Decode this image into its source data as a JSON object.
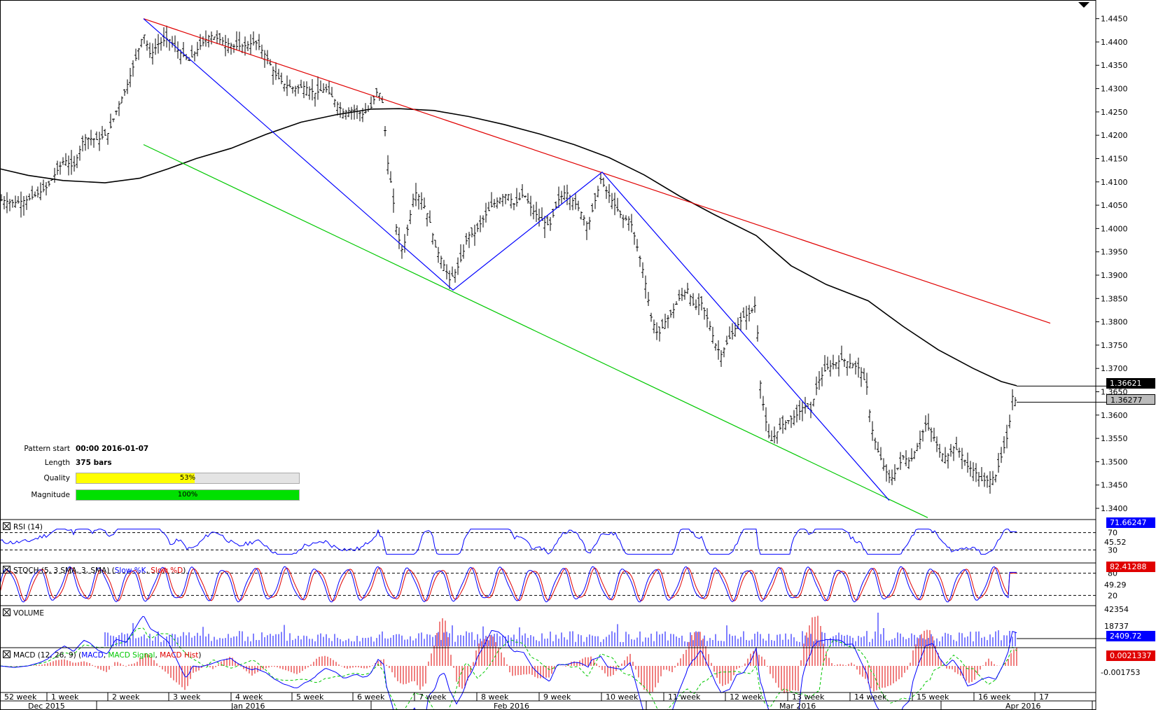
{
  "chart_data": {
    "type": "ohlc",
    "price_axis": {
      "ticks": [
        "1.4450",
        "1.4400",
        "1.4350",
        "1.4300",
        "1.4250",
        "1.4200",
        "1.4150",
        "1.4100",
        "1.4050",
        "1.4000",
        "1.3950",
        "1.3900",
        "1.3850",
        "1.3800",
        "1.3750",
        "1.3700",
        "1.3650",
        "1.3600",
        "1.3550",
        "1.3500",
        "1.3450",
        "1.3400"
      ],
      "range": [
        1.3385,
        1.449
      ]
    },
    "price_tags": [
      {
        "label": "1.36621",
        "value": 1.36621,
        "style": "dark"
      },
      {
        "label": "1.36277",
        "value": 1.36277,
        "style": "grey"
      }
    ],
    "close_path": [
      [
        0,
        1.4062
      ],
      [
        20,
        1.4055
      ],
      [
        40,
        1.4062
      ],
      [
        55,
        1.4075
      ],
      [
        68,
        1.409
      ],
      [
        80,
        1.412
      ],
      [
        92,
        1.4148
      ],
      [
        105,
        1.413
      ],
      [
        120,
        1.4195
      ],
      [
        140,
        1.419
      ],
      [
        155,
        1.4205
      ],
      [
        168,
        1.426
      ],
      [
        180,
        1.43
      ],
      [
        193,
        1.436
      ],
      [
        205,
        1.442
      ],
      [
        215,
        1.437
      ],
      [
        225,
        1.4395
      ],
      [
        240,
        1.4408
      ],
      [
        255,
        1.438
      ],
      [
        270,
        1.436
      ],
      [
        285,
        1.439
      ],
      [
        300,
        1.4415
      ],
      [
        318,
        1.4402
      ],
      [
        335,
        1.439
      ],
      [
        350,
        1.4392
      ],
      [
        365,
        1.44
      ],
      [
        380,
        1.437
      ],
      [
        393,
        1.433
      ],
      [
        405,
        1.431
      ],
      [
        420,
        1.43
      ],
      [
        435,
        1.4305
      ],
      [
        450,
        1.429
      ],
      [
        465,
        1.43
      ],
      [
        478,
        1.4275
      ],
      [
        490,
        1.425
      ],
      [
        505,
        1.4255
      ],
      [
        518,
        1.4245
      ],
      [
        530,
        1.426
      ],
      [
        540,
        1.43
      ],
      [
        548,
        1.426
      ],
      [
        552,
        1.416
      ],
      [
        560,
        1.408
      ],
      [
        567,
        1.399
      ],
      [
        575,
        1.395
      ],
      [
        583,
        1.4005
      ],
      [
        592,
        1.408
      ],
      [
        603,
        1.406
      ],
      [
        613,
        1.402
      ],
      [
        622,
        1.396
      ],
      [
        632,
        1.393
      ],
      [
        642,
        1.389
      ],
      [
        652,
        1.391
      ],
      [
        660,
        1.394
      ],
      [
        668,
        1.3985
      ],
      [
        678,
        1.399
      ],
      [
        690,
        1.402
      ],
      [
        703,
        1.405
      ],
      [
        715,
        1.4065
      ],
      [
        725,
        1.4075
      ],
      [
        735,
        1.405
      ],
      [
        748,
        1.4075
      ],
      [
        760,
        1.404
      ],
      [
        772,
        1.402
      ],
      [
        785,
        1.4005
      ],
      [
        797,
        1.406
      ],
      [
        808,
        1.408
      ],
      [
        818,
        1.406
      ],
      [
        828,
        1.404
      ],
      [
        840,
        1.4005
      ],
      [
        850,
        1.406
      ],
      [
        858,
        1.4105
      ],
      [
        868,
        1.4075
      ],
      [
        878,
        1.405
      ],
      [
        890,
        1.402
      ],
      [
        900,
        1.402
      ],
      [
        910,
        1.396
      ],
      [
        920,
        1.39
      ],
      [
        930,
        1.381
      ],
      [
        940,
        1.377
      ],
      [
        950,
        1.38
      ],
      [
        960,
        1.382
      ],
      [
        970,
        1.385
      ],
      [
        982,
        1.387
      ],
      [
        992,
        1.383
      ],
      [
        1002,
        1.384
      ],
      [
        1012,
        1.38
      ],
      [
        1022,
        1.375
      ],
      [
        1030,
        1.373
      ],
      [
        1040,
        1.376
      ],
      [
        1052,
        1.379
      ],
      [
        1062,
        1.381
      ],
      [
        1072,
        1.382
      ],
      [
        1080,
        1.384
      ],
      [
        1085,
        1.368
      ],
      [
        1092,
        1.36
      ],
      [
        1100,
        1.354
      ],
      [
        1108,
        1.356
      ],
      [
        1118,
        1.358
      ],
      [
        1128,
        1.359
      ],
      [
        1138,
        1.36
      ],
      [
        1148,
        1.362
      ],
      [
        1158,
        1.361
      ],
      [
        1168,
        1.367
      ],
      [
        1180,
        1.37
      ],
      [
        1192,
        1.371
      ],
      [
        1203,
        1.372
      ],
      [
        1215,
        1.371
      ],
      [
        1228,
        1.37
      ],
      [
        1238,
        1.366
      ],
      [
        1244,
        1.358
      ],
      [
        1252,
        1.353
      ],
      [
        1262,
        1.349
      ],
      [
        1272,
        1.346
      ],
      [
        1280,
        1.348
      ],
      [
        1290,
        1.351
      ],
      [
        1300,
        1.35
      ],
      [
        1312,
        1.354
      ],
      [
        1322,
        1.358
      ],
      [
        1332,
        1.356
      ],
      [
        1342,
        1.352
      ],
      [
        1352,
        1.351
      ],
      [
        1362,
        1.353
      ],
      [
        1372,
        1.352
      ],
      [
        1382,
        1.349
      ],
      [
        1392,
        1.348
      ],
      [
        1402,
        1.346
      ],
      [
        1412,
        1.346
      ],
      [
        1422,
        1.347
      ],
      [
        1432,
        1.352
      ],
      [
        1440,
        1.356
      ],
      [
        1446,
        1.364
      ],
      [
        1452,
        1.3628
      ]
    ],
    "moving_average": [
      [
        0,
        1.4128
      ],
      [
        40,
        1.4114
      ],
      [
        90,
        1.4103
      ],
      [
        150,
        1.4098
      ],
      [
        200,
        1.4108
      ],
      [
        240,
        1.4128
      ],
      [
        280,
        1.415
      ],
      [
        330,
        1.4172
      ],
      [
        380,
        1.4202
      ],
      [
        430,
        1.4228
      ],
      [
        480,
        1.4244
      ],
      [
        530,
        1.4256
      ],
      [
        570,
        1.4257
      ],
      [
        620,
        1.4253
      ],
      [
        670,
        1.424
      ],
      [
        720,
        1.4223
      ],
      [
        770,
        1.4203
      ],
      [
        820,
        1.418
      ],
      [
        870,
        1.4152
      ],
      [
        920,
        1.4115
      ],
      [
        970,
        1.407
      ],
      [
        1020,
        1.403
      ],
      [
        1080,
        1.3985
      ],
      [
        1130,
        1.392
      ],
      [
        1180,
        1.388
      ],
      [
        1240,
        1.3845
      ],
      [
        1290,
        1.379
      ],
      [
        1340,
        1.374
      ],
      [
        1390,
        1.37
      ],
      [
        1430,
        1.3672
      ],
      [
        1452,
        1.3663
      ]
    ],
    "trendlines": [
      {
        "color": "#e00000",
        "from": [
          205,
          1.445
        ],
        "to": [
          1500,
          1.3797
        ]
      },
      {
        "color": "#00c800",
        "from": [
          205,
          1.418
        ],
        "to": [
          1325,
          1.338
        ]
      },
      {
        "color": "#0000ff",
        "points": [
          [
            205,
            1.445
          ],
          [
            647,
            1.3868
          ],
          [
            860,
            1.4121
          ],
          [
            1270,
            1.3417
          ]
        ]
      }
    ],
    "pattern": {
      "start_label": "Pattern start",
      "start_value": "00:00 2016-01-07",
      "length_label": "Length",
      "length_value": "375 bars",
      "quality_label": "Quality",
      "quality_pct": 53,
      "quality_text": "53%",
      "magnitude_label": "Magnitude",
      "magnitude_pct": 100,
      "magnitude_text": "100%"
    },
    "time_axis": {
      "weeks": [
        "52 week",
        "1 week",
        "2 week",
        "3 week",
        "4 week",
        "5 week",
        "6 week",
        "7 week",
        "8 week",
        "9 week",
        "10 week",
        "11 week",
        "12 week",
        "13 week",
        "14 week",
        "15 week",
        "16 week",
        "17"
      ],
      "months": [
        "Dec 2015",
        "Jan 2016",
        "Feb 2016",
        "Mar 2016",
        "Apr 2016"
      ]
    },
    "rsi": {
      "label": "RSI (14)",
      "level_hi": "70",
      "level_lo": "30",
      "mid_label": "45.52",
      "current": "71.66247"
    },
    "stoch": {
      "label": "STOCH (5, 3 SMA, 3, SMA)",
      "k_label": "Slow %K",
      "d_label": "Slow %D",
      "level_hi": "80",
      "level_lo": "20",
      "mid_label": "49.29",
      "current": "82.41288"
    },
    "volume": {
      "label": "VOLUME",
      "ticks": [
        "42354",
        "18737"
      ],
      "current": "2409.72"
    },
    "macd": {
      "label": "MACD (12, 26, 9)",
      "series": [
        "MACD",
        "MACD Signal",
        "MACD Hist"
      ],
      "tick_low": "-0.001753",
      "current": "0.0021337"
    }
  },
  "colors": {
    "blue": "#0000ff",
    "red": "#e00000",
    "green": "#00c800",
    "quality": "#ffff00",
    "magnitude": "#00e000"
  }
}
